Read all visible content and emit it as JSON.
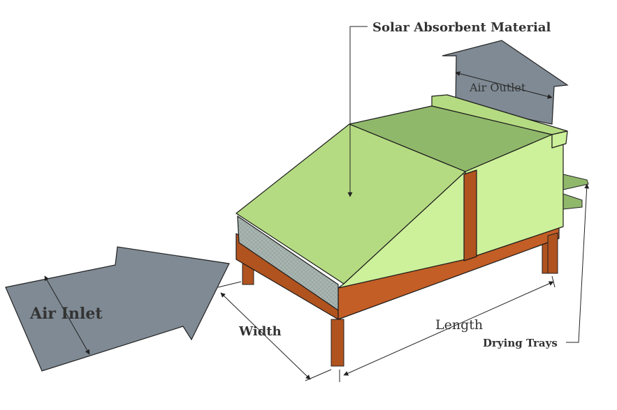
{
  "labels": {
    "solar_absorbent_material": "Solar Absorbent Material",
    "air_outlet": "Air Outlet",
    "air_inlet": "Air Inlet",
    "width": "Width",
    "length": "Length",
    "drying_trays": "Drying Trays"
  },
  "colors": {
    "collector_green": "#b5db82",
    "roof_dark_green": "#90b86b",
    "side_green": "#cdf09a",
    "arrow_gray": "#7f8a94",
    "wood_brown": "#b0531f",
    "mesh_gray": "#a8b5b0"
  }
}
